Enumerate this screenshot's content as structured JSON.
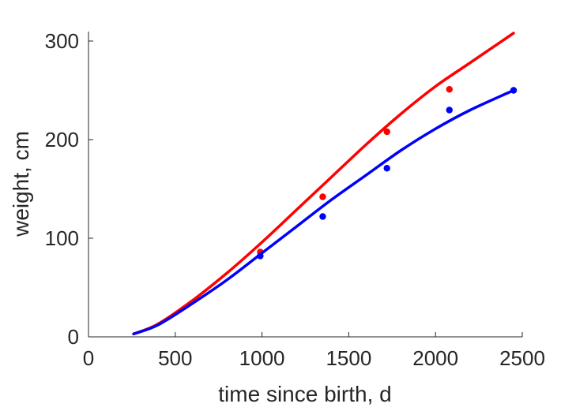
{
  "chart_data": {
    "type": "line",
    "title": "",
    "xlabel": "time since birth, d",
    "ylabel": "weight, cm",
    "xlim": [
      0,
      2500
    ],
    "ylim": [
      0,
      300
    ],
    "xticks": [
      0,
      500,
      1000,
      1500,
      2000,
      2500
    ],
    "yticks": [
      0,
      100,
      200,
      300
    ],
    "xtick_labels": [
      "0",
      "500",
      "1000",
      "1500",
      "2000",
      "2500"
    ],
    "ytick_labels": [
      "0",
      "100",
      "200",
      "300"
    ],
    "grid": false,
    "series": [
      {
        "color": "#ff0000",
        "points": [
          [
            990,
            86
          ],
          [
            1350,
            142
          ],
          [
            1720,
            208
          ],
          [
            2080,
            251
          ]
        ],
        "curve": [
          [
            260,
            3
          ],
          [
            400,
            13
          ],
          [
            600,
            37
          ],
          [
            800,
            65
          ],
          [
            1000,
            96
          ],
          [
            1200,
            129
          ],
          [
            1400,
            162
          ],
          [
            1600,
            195
          ],
          [
            1800,
            226
          ],
          [
            2000,
            254
          ],
          [
            2200,
            278
          ],
          [
            2450,
            308
          ]
        ]
      },
      {
        "color": "#0000ff",
        "points": [
          [
            990,
            82
          ],
          [
            1350,
            122
          ],
          [
            1720,
            171
          ],
          [
            2080,
            230
          ],
          [
            2450,
            250
          ]
        ],
        "curve": [
          [
            260,
            3
          ],
          [
            400,
            12
          ],
          [
            600,
            34
          ],
          [
            800,
            58
          ],
          [
            1000,
            85
          ],
          [
            1200,
            112
          ],
          [
            1400,
            139
          ],
          [
            1600,
            164
          ],
          [
            1800,
            189
          ],
          [
            2000,
            211
          ],
          [
            2200,
            230
          ],
          [
            2450,
            250
          ]
        ]
      }
    ]
  }
}
